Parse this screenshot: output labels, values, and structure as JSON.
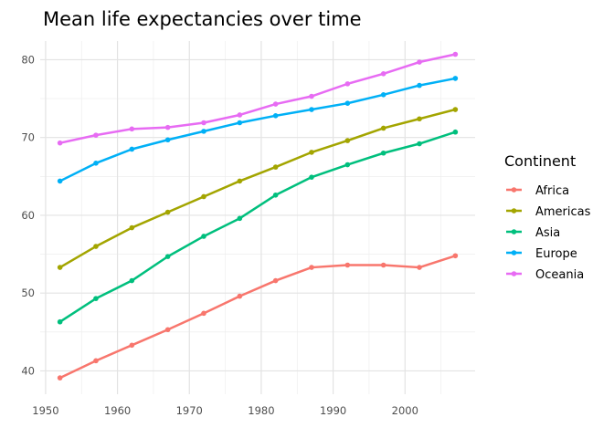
{
  "chart_data": {
    "type": "line",
    "title": "Mean life expectancies over time",
    "xlabel": "",
    "ylabel": "",
    "x": [
      1952,
      1957,
      1962,
      1967,
      1972,
      1977,
      1982,
      1987,
      1992,
      1997,
      2002,
      2007
    ],
    "xlim": [
      1949.25,
      2009.75
    ],
    "ylim": [
      37,
      82.4
    ],
    "x_ticks": [
      1950,
      1960,
      1970,
      1980,
      1990,
      2000
    ],
    "y_ticks": [
      40,
      50,
      60,
      70,
      80
    ],
    "grid": true,
    "legend": {
      "title": "Continent",
      "position": "right"
    },
    "series": [
      {
        "name": "Africa",
        "color": "#F8766D",
        "values": [
          39.1,
          41.3,
          43.3,
          45.3,
          47.4,
          49.6,
          51.6,
          53.3,
          53.6,
          53.6,
          53.3,
          54.8
        ]
      },
      {
        "name": "Americas",
        "color": "#A3A500",
        "values": [
          53.3,
          56.0,
          58.4,
          60.4,
          62.4,
          64.4,
          66.2,
          68.1,
          69.6,
          71.2,
          72.4,
          73.6
        ]
      },
      {
        "name": "Asia",
        "color": "#00BF7D",
        "values": [
          46.3,
          49.3,
          51.6,
          54.7,
          57.3,
          59.6,
          62.6,
          64.9,
          66.5,
          68.0,
          69.2,
          70.7
        ]
      },
      {
        "name": "Europe",
        "color": "#00B0F6",
        "values": [
          64.4,
          66.7,
          68.5,
          69.7,
          70.8,
          71.9,
          72.8,
          73.6,
          74.4,
          75.5,
          76.7,
          77.6
        ]
      },
      {
        "name": "Oceania",
        "color": "#E76BF3",
        "values": [
          69.3,
          70.3,
          71.1,
          71.3,
          71.9,
          72.9,
          74.3,
          75.3,
          76.9,
          78.2,
          79.7,
          80.7
        ]
      }
    ]
  }
}
